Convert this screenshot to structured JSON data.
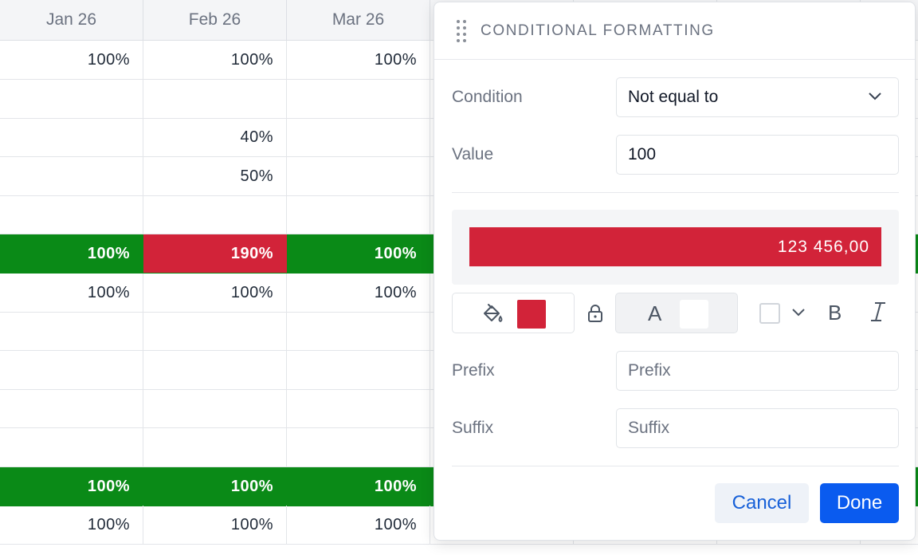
{
  "grid": {
    "columns": [
      "Jan 26",
      "Feb 26",
      "Mar 26"
    ],
    "rows": [
      {
        "cells": [
          "100%",
          "100%",
          "100%"
        ],
        "style": "plain"
      },
      {
        "cells": [
          "",
          "",
          ""
        ],
        "style": "plain"
      },
      {
        "cells": [
          "",
          "40%",
          ""
        ],
        "style": "plain"
      },
      {
        "cells": [
          "",
          "50%",
          ""
        ],
        "style": "plain"
      },
      {
        "cells": [
          "",
          "",
          ""
        ],
        "style": "plain"
      },
      {
        "cells": [
          "100%",
          "190%",
          "100%"
        ],
        "style": "green",
        "red_cell": 1
      },
      {
        "cells": [
          "100%",
          "100%",
          "100%"
        ],
        "style": "plain"
      },
      {
        "cells": [
          "",
          "",
          ""
        ],
        "style": "plain"
      },
      {
        "cells": [
          "",
          "",
          ""
        ],
        "style": "plain"
      },
      {
        "cells": [
          "",
          "",
          ""
        ],
        "style": "plain"
      },
      {
        "cells": [
          "",
          "",
          ""
        ],
        "style": "plain"
      },
      {
        "cells": [
          "100%",
          "100%",
          "100%"
        ],
        "style": "green"
      },
      {
        "cells": [
          "100%",
          "100%",
          "100%"
        ],
        "style": "plain"
      }
    ]
  },
  "panel": {
    "title": "CONDITIONAL FORMATTING",
    "condition_label": "Condition",
    "condition_value": "Not equal to",
    "value_label": "Value",
    "value_value": "100",
    "preview_text": "123 456,00",
    "prefix_label": "Prefix",
    "prefix_placeholder": "Prefix",
    "suffix_label": "Suffix",
    "suffix_placeholder": "Suffix",
    "text_color_glyph": "A",
    "bold_glyph": "B",
    "cancel_label": "Cancel",
    "done_label": "Done",
    "icons": [
      "drag-handle-icon",
      "paint-bucket-icon",
      "lock-icon",
      "chevron-down-icon",
      "italic-icon"
    ]
  },
  "colors": {
    "fill": "#d22339",
    "text": "#ffffff",
    "green_row": "#0a8a17",
    "accent": "#0a5bef"
  }
}
